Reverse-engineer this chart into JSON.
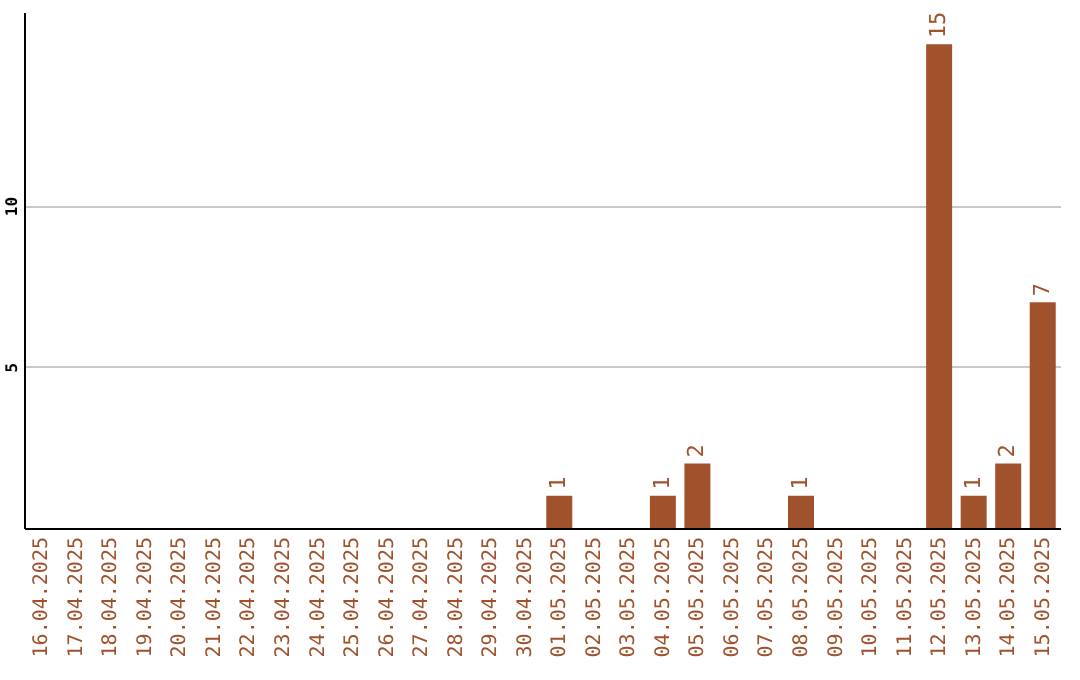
{
  "chart_data": {
    "type": "bar",
    "categories": [
      "16.04.2025",
      "17.04.2025",
      "18.04.2025",
      "19.04.2025",
      "20.04.2025",
      "21.04.2025",
      "22.04.2025",
      "23.04.2025",
      "24.04.2025",
      "25.04.2025",
      "26.04.2025",
      "27.04.2025",
      "28.04.2025",
      "29.04.2025",
      "30.04.2025",
      "01.05.2025",
      "02.05.2025",
      "03.05.2025",
      "04.05.2025",
      "05.05.2025",
      "06.05.2025",
      "07.05.2025",
      "08.05.2025",
      "09.05.2025",
      "10.05.2025",
      "11.05.2025",
      "12.05.2025",
      "13.05.2025",
      "14.05.2025",
      "15.05.2025"
    ],
    "values": [
      0,
      0,
      0,
      0,
      0,
      0,
      0,
      0,
      0,
      0,
      0,
      0,
      0,
      0,
      0,
      1,
      0,
      0,
      1,
      2,
      0,
      0,
      1,
      0,
      0,
      0,
      15,
      1,
      2,
      7
    ],
    "value_labels": [
      null,
      null,
      null,
      null,
      null,
      null,
      null,
      null,
      null,
      null,
      null,
      null,
      null,
      null,
      null,
      "1",
      null,
      null,
      "1",
      "2",
      null,
      null,
      "1",
      null,
      null,
      null,
      "15",
      "1",
      "2",
      "7"
    ],
    "color": "#a0522d",
    "ylim": [
      0,
      16
    ],
    "yticks": [
      5,
      10
    ],
    "grid": "y"
  }
}
